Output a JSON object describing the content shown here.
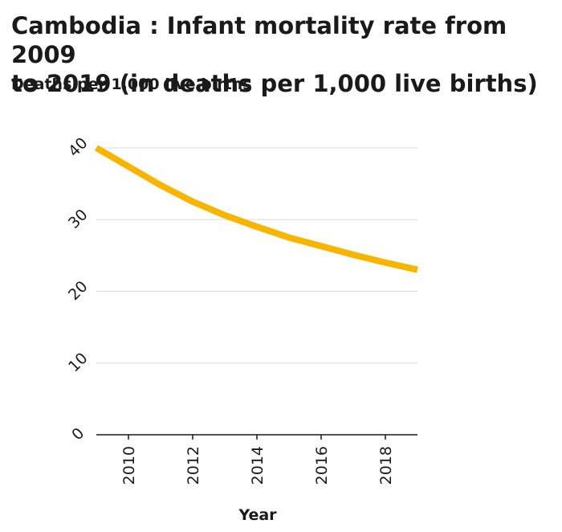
{
  "chart_data": {
    "type": "line",
    "title": "Cambodia : Infant mortality rate from 2009\nto 2019 (in deaths per 1,000 live births)",
    "ylabel": "Deaths per 1,000 live births",
    "xlabel": "Year",
    "xlim": [
      2009,
      2019
    ],
    "ylim": [
      0,
      40
    ],
    "x_ticks": [
      2010,
      2012,
      2014,
      2016,
      2018
    ],
    "y_ticks": [
      0,
      10,
      20,
      30,
      40
    ],
    "grid": "horizontal",
    "legend": "none",
    "line_color": "#f7b500",
    "x": [
      2009,
      2010,
      2011,
      2012,
      2013,
      2014,
      2015,
      2016,
      2017,
      2018,
      2019
    ],
    "values": [
      40.0,
      37.4,
      34.8,
      32.5,
      30.6,
      29.0,
      27.5,
      26.3,
      25.1,
      24.0,
      23.0
    ]
  }
}
